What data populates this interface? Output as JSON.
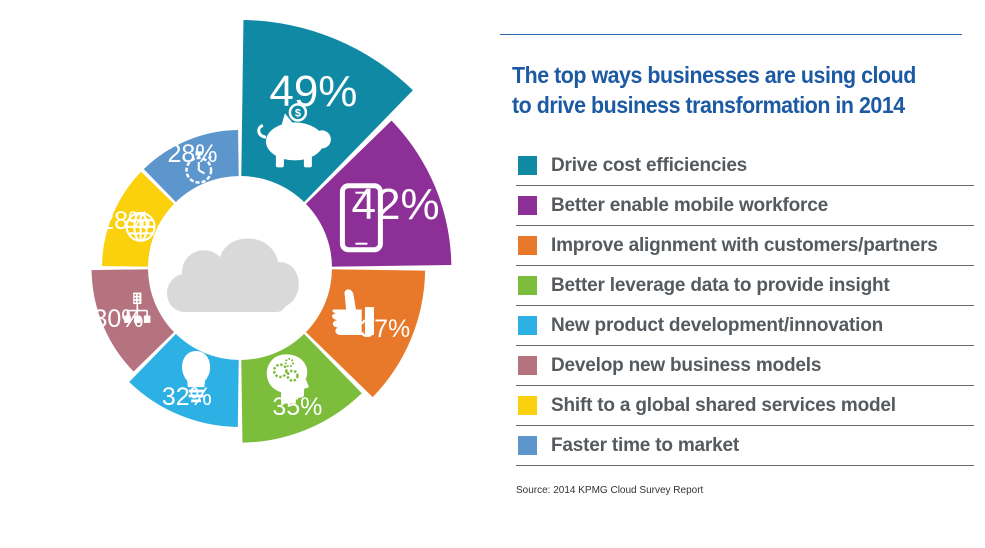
{
  "title_lines": [
    "The top ways businesses are using cloud",
    "to drive business transformation in 2014"
  ],
  "source": "Source: 2014 KPMG Cloud Survey Report",
  "chart_data": {
    "type": "pie",
    "title": "The top ways businesses are using cloud to drive business transformation in 2014",
    "unit": "%",
    "legend_placement": "right",
    "slices": [
      {
        "label": "Drive cost efficiencies",
        "value": 49,
        "display": "49%",
        "color": "#1089a4",
        "icon": "piggy-bank-icon"
      },
      {
        "label": "Better enable mobile workforce",
        "value": 42,
        "display": "42%",
        "color": "#8c2f97",
        "icon": "smartphone-icon"
      },
      {
        "label": "Improve alignment with customers/partners",
        "value": 37,
        "display": "37%",
        "color": "#e8792a",
        "icon": "thumbs-up-icon"
      },
      {
        "label": "Better leverage data to provide insight",
        "value": 35,
        "display": "35%",
        "color": "#7dbd3c",
        "icon": "head-gears-icon"
      },
      {
        "label": "New product development/innovation",
        "value": 32,
        "display": "32%",
        "color": "#2db0e4",
        "icon": "lightbulb-icon"
      },
      {
        "label": "Develop new business models",
        "value": 30,
        "display": "30%",
        "color": "#b5737f",
        "icon": "org-chart-icon"
      },
      {
        "label": "Shift to a global shared services model",
        "value": 28,
        "display": "28%",
        "color": "#fbd10e",
        "icon": "globe-icon"
      },
      {
        "label": "Faster time to market",
        "value": 28,
        "display": "28%",
        "color": "#5d96cc",
        "icon": "stopwatch-icon"
      }
    ]
  }
}
